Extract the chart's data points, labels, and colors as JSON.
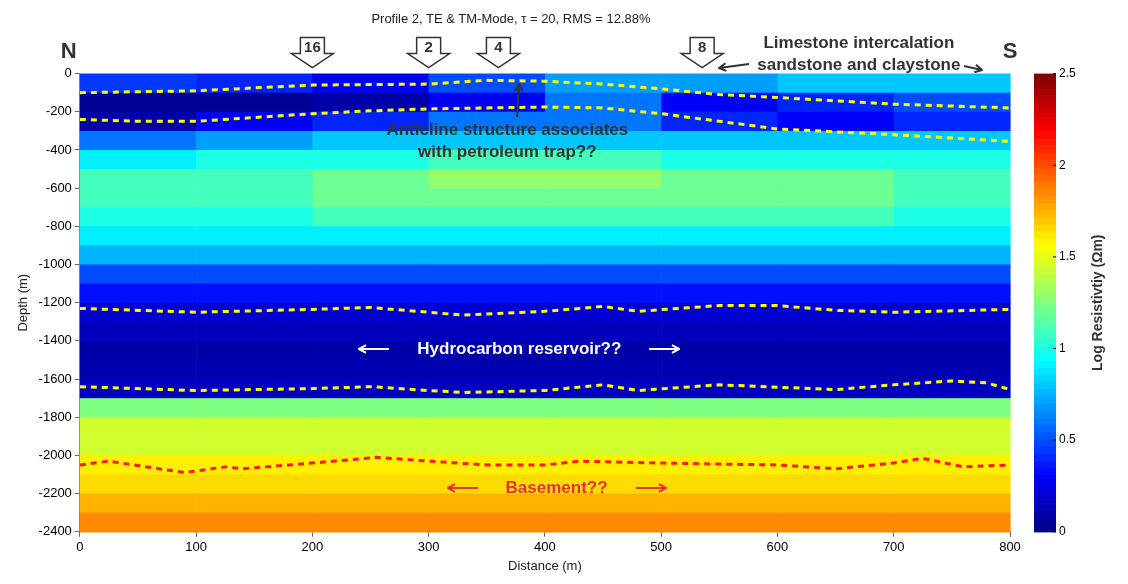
{
  "chart_data": {
    "type": "heatmap",
    "title": "Profile 2, TE & TM-Mode, τ = 20, RMS = 12.88%",
    "xlabel": "Distance (m)",
    "ylabel": "Depth (m)",
    "clabel": "Log Resistivtiy (Ωm)",
    "x": [
      50,
      150,
      250,
      350,
      450,
      550,
      650,
      750
    ],
    "cells": [
      [
        0.45,
        0.4,
        0.3,
        0.5,
        0.7,
        0.7,
        0.8,
        0.8
      ],
      [
        0.05,
        0.05,
        0.1,
        0.3,
        0.6,
        0.3,
        0.4,
        0.5
      ],
      [
        0.1,
        0.3,
        0.4,
        0.6,
        0.6,
        0.4,
        0.3,
        0.4
      ],
      [
        0.6,
        0.7,
        0.8,
        0.8,
        0.8,
        0.8,
        0.8,
        0.8
      ],
      [
        0.9,
        1.0,
        1.0,
        1.1,
        1.1,
        1.0,
        1.0,
        1.0
      ],
      [
        1.1,
        1.1,
        1.2,
        1.3,
        1.3,
        1.2,
        1.2,
        1.1
      ],
      [
        1.1,
        1.1,
        1.2,
        1.2,
        1.2,
        1.2,
        1.2,
        1.1
      ],
      [
        1.0,
        1.0,
        1.1,
        1.1,
        1.1,
        1.1,
        1.1,
        1.0
      ],
      [
        0.9,
        0.9,
        0.9,
        0.9,
        0.9,
        0.9,
        0.9,
        0.9
      ],
      [
        0.75,
        0.75,
        0.75,
        0.75,
        0.75,
        0.75,
        0.75,
        0.75
      ],
      [
        0.5,
        0.5,
        0.5,
        0.5,
        0.5,
        0.5,
        0.5,
        0.5
      ],
      [
        0.35,
        0.35,
        0.35,
        0.35,
        0.35,
        0.35,
        0.35,
        0.35
      ],
      [
        0.2,
        0.2,
        0.2,
        0.2,
        0.2,
        0.2,
        0.2,
        0.2
      ],
      [
        0.15,
        0.15,
        0.15,
        0.15,
        0.15,
        0.15,
        0.15,
        0.15
      ],
      [
        0.1,
        0.1,
        0.1,
        0.1,
        0.1,
        0.1,
        0.1,
        0.1
      ],
      [
        0.12,
        0.12,
        0.12,
        0.12,
        0.12,
        0.12,
        0.12,
        0.12
      ],
      [
        0.15,
        0.15,
        0.15,
        0.15,
        0.15,
        0.15,
        0.15,
        0.15
      ],
      [
        1.25,
        1.25,
        1.25,
        1.25,
        1.25,
        1.25,
        1.25,
        1.25
      ],
      [
        1.45,
        1.45,
        1.45,
        1.45,
        1.45,
        1.45,
        1.45,
        1.45
      ],
      [
        1.45,
        1.45,
        1.45,
        1.45,
        1.45,
        1.45,
        1.45,
        1.45
      ],
      [
        1.6,
        1.6,
        1.6,
        1.6,
        1.6,
        1.6,
        1.6,
        1.6
      ],
      [
        1.65,
        1.65,
        1.65,
        1.65,
        1.65,
        1.65,
        1.65,
        1.65
      ],
      [
        1.75,
        1.75,
        1.75,
        1.75,
        1.75,
        1.75,
        1.75,
        1.75
      ],
      [
        1.85,
        1.85,
        1.85,
        1.85,
        1.85,
        1.85,
        1.85,
        1.85
      ]
    ],
    "clim": [
      0,
      2.5
    ],
    "cticks": [
      0,
      0.5,
      1,
      1.5,
      2,
      2.5
    ],
    "xlim": [
      0,
      800
    ],
    "xticks": [
      0,
      100,
      200,
      300,
      400,
      500,
      600,
      700,
      800
    ],
    "ylim": [
      -2400,
      0
    ],
    "yticks": [
      -2400,
      -2200,
      -2000,
      -1800,
      -1600,
      -1400,
      -1200,
      -1000,
      -800,
      -600,
      -400,
      -200,
      0
    ],
    "grid": false,
    "legend": false,
    "series": [
      {
        "type": "line",
        "color": "#ffff00",
        "line_style": "dashed",
        "x": [
          0,
          100,
          200,
          300,
          350,
          400,
          450,
          500,
          550,
          600,
          700,
          800
        ],
        "values": [
          -100,
          -90,
          -60,
          -55,
          -35,
          -40,
          -55,
          -80,
          -110,
          -125,
          -160,
          -180
        ]
      },
      {
        "type": "line",
        "color": "#ffff00",
        "line_style": "dashed",
        "x": [
          0,
          50,
          100,
          150,
          200,
          250,
          300,
          400,
          450,
          500,
          550,
          600,
          700,
          800
        ],
        "values": [
          -240,
          -250,
          -250,
          -230,
          -210,
          -195,
          -185,
          -175,
          -180,
          -210,
          -250,
          -290,
          -320,
          -355
        ]
      },
      {
        "type": "line",
        "color": "#ffff00",
        "line_style": "dashed",
        "x": [
          0,
          100,
          200,
          250,
          300,
          330,
          400,
          450,
          480,
          550,
          600,
          650,
          700,
          800
        ],
        "values": [
          -1230,
          -1250,
          -1235,
          -1225,
          -1250,
          -1265,
          -1245,
          -1220,
          -1245,
          -1215,
          -1215,
          -1240,
          -1250,
          -1235
        ]
      },
      {
        "type": "line",
        "color": "#ffff00",
        "line_style": "dashed",
        "x": [
          0,
          100,
          200,
          250,
          300,
          330,
          400,
          450,
          480,
          550,
          650,
          700,
          750,
          780,
          800
        ],
        "values": [
          -1640,
          -1660,
          -1650,
          -1640,
          -1660,
          -1670,
          -1660,
          -1630,
          -1660,
          -1630,
          -1655,
          -1630,
          -1610,
          -1620,
          -1655
        ]
      },
      {
        "type": "line",
        "color": "#ff1a1a",
        "line_style": "dashed",
        "x": [
          0,
          25,
          90,
          125,
          140,
          200,
          255,
          300,
          350,
          400,
          430,
          500,
          600,
          650,
          700,
          725,
          760,
          800
        ],
        "values": [
          -2050,
          -2030,
          -2090,
          -2060,
          -2070,
          -2040,
          -2010,
          -2030,
          -2050,
          -2050,
          -2030,
          -2040,
          -2050,
          -2070,
          -2040,
          -2015,
          -2060,
          -2050
        ]
      }
    ],
    "annotations": [
      "N",
      "S",
      "16",
      "2",
      "4",
      "8",
      "Limestone intercalation\nsandstone and claystone",
      {
        "text": "Anticline structure associates\nwith petroleum trap??",
        "x": 378,
        "y": -40
      },
      "Hydrocarbon reservoir??",
      "Basement??"
    ]
  }
}
